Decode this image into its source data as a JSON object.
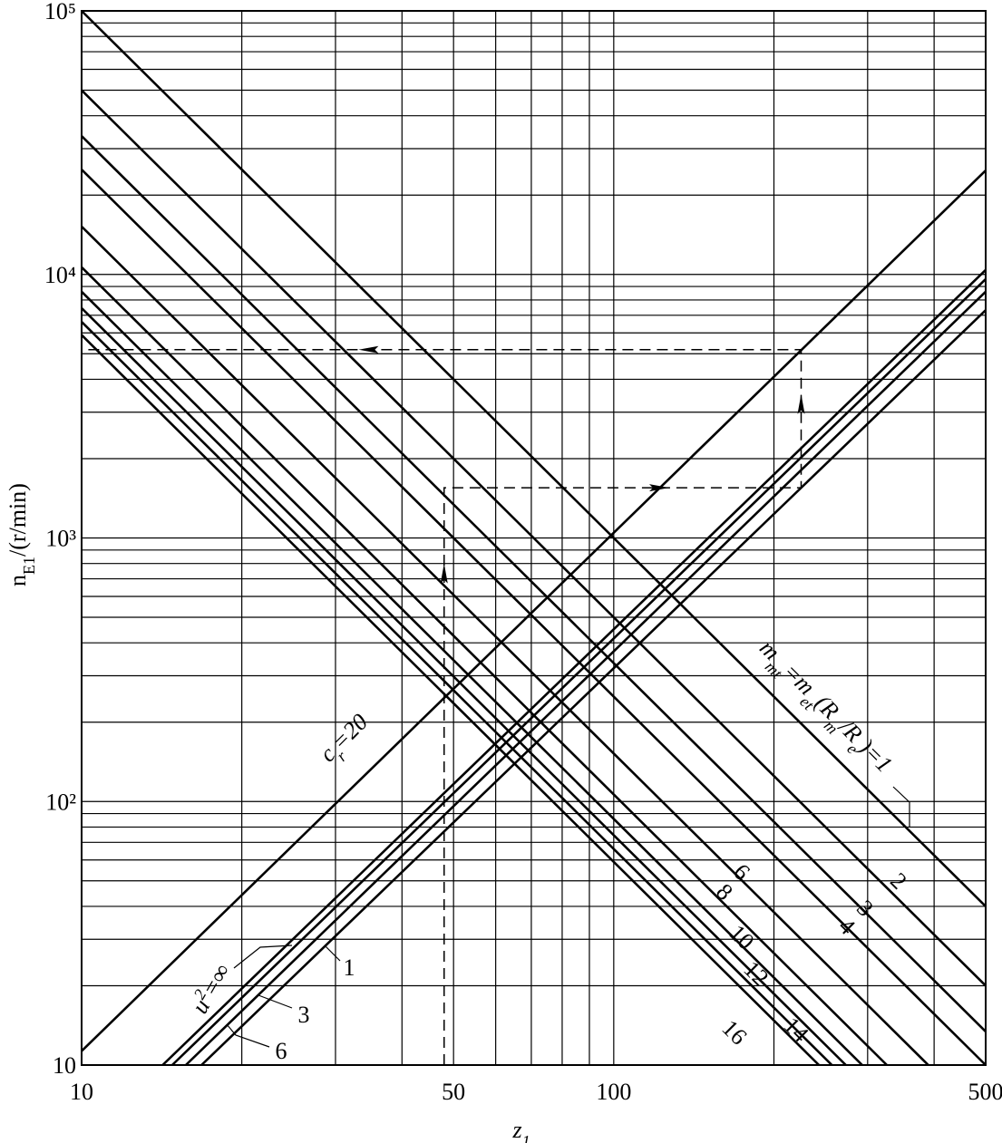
{
  "chart_data": {
    "type": "line",
    "log_x": true,
    "log_y": true,
    "grid": true,
    "color": "#000000",
    "x_label": [
      {
        "text": "z"
      },
      {
        "text": "1",
        "sub": true
      }
    ],
    "y_label": [
      {
        "text": "n"
      },
      {
        "text": "E1",
        "sub": true
      },
      {
        "text": "/(r/min)"
      }
    ],
    "xlim": [
      10,
      500
    ],
    "ylim": [
      10,
      100000
    ],
    "xticks": [
      10,
      50,
      100,
      500
    ],
    "yticks": [
      10,
      {
        "value": 100,
        "label": "10²"
      },
      {
        "value": 1000,
        "label": "10³"
      },
      {
        "value": 10000,
        "label": "10⁴"
      },
      {
        "value": 100000,
        "label": "10⁵"
      }
    ],
    "xgrid": [
      20,
      30,
      40,
      60,
      70,
      80,
      90,
      200,
      300,
      400
    ],
    "ygrid": [
      20,
      30,
      40,
      50,
      60,
      70,
      80,
      90,
      200,
      300,
      400,
      500,
      600,
      700,
      800,
      900,
      2000,
      3000,
      4000,
      5000,
      6000,
      7000,
      8000,
      9000,
      20000,
      30000,
      40000,
      50000,
      60000,
      70000,
      80000,
      90000
    ],
    "m_label": [
      {
        "text": "m"
      },
      {
        "text": "mt",
        "sub": true
      },
      {
        "text": "=m"
      },
      {
        "text": "et",
        "sub": true
      },
      {
        "text": "(R"
      },
      {
        "text": "m",
        "sub": true
      },
      {
        "text": "/R"
      },
      {
        "text": "e",
        "sub": true
      },
      {
        "text": ")="
      }
    ],
    "c_label": [
      {
        "text": "c"
      },
      {
        "text": "r",
        "sub": true
      },
      {
        "text": "="
      }
    ],
    "u_label": [
      {
        "text": "u"
      },
      {
        "text": "2",
        "sup": true
      },
      {
        "text": "="
      }
    ],
    "series": [
      {
        "name": "1",
        "x": [
          10,
          500
        ],
        "values": [
          100000,
          40
        ]
      },
      {
        "name": "2",
        "x": [
          10,
          500
        ],
        "values": [
          50000,
          20
        ]
      },
      {
        "name": "3",
        "x": [
          10,
          500
        ],
        "values": [
          33500,
          13.4
        ]
      },
      {
        "name": "4",
        "x": [
          10,
          500
        ],
        "values": [
          25000,
          10
        ]
      },
      {
        "name": "6",
        "x": [
          10,
          390
        ],
        "values": [
          15200,
          10
        ]
      },
      {
        "name": "8",
        "x": [
          10,
          326
        ],
        "values": [
          10650,
          10
        ]
      },
      {
        "name": "10",
        "x": [
          10,
          293
        ],
        "values": [
          8600,
          10
        ]
      },
      {
        "name": "12",
        "x": [
          10,
          273
        ],
        "values": [
          7450,
          10
        ]
      },
      {
        "name": "14",
        "x": [
          10,
          257
        ],
        "values": [
          6610,
          10
        ]
      },
      {
        "name": "16",
        "x": [
          10,
          243
        ],
        "values": [
          5890,
          10
        ]
      }
    ],
    "series_c": [
      {
        "name": "20",
        "x": [
          10,
          500
        ],
        "values": [
          11.3,
          24800
        ]
      }
    ],
    "series_u": [
      {
        "name": "∞",
        "x": [
          14.2,
          500
        ],
        "values": [
          10,
          10400
        ]
      },
      {
        "name": "3",
        "x": [
          14.8,
          500
        ],
        "values": [
          10,
          9600
        ]
      },
      {
        "name": "6",
        "x": [
          15.7,
          500
        ],
        "values": [
          10,
          8600
        ]
      },
      {
        "name": "1",
        "x": [
          16.8,
          500
        ],
        "values": [
          10,
          7320
        ]
      }
    ],
    "guide": {
      "x": [
        48,
        48,
        225,
        225,
        10
      ],
      "values": [
        10,
        1550,
        1550,
        5180,
        5180
      ]
    }
  }
}
